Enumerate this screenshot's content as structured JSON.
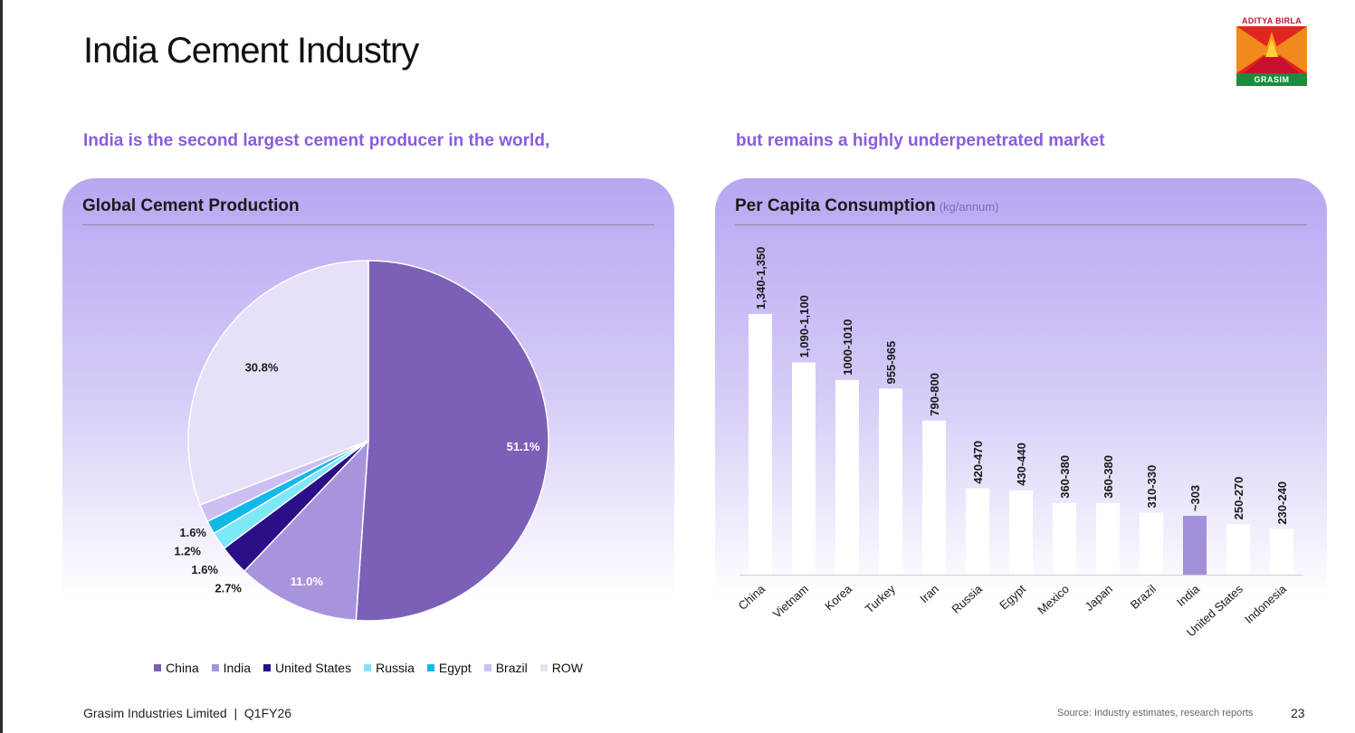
{
  "slide": {
    "title": "India Cement Industry",
    "subhead_left": "India is the second largest cement producer in the world,",
    "subhead_right": "but remains a highly underpenetrated market",
    "logo": {
      "top_text": "ADITYA BIRLA",
      "bottom_text": "GRASIM"
    },
    "footer": {
      "company": "Grasim Industries Limited  |  Q1FY26",
      "source": "Source: Industry estimates, research reports",
      "page": "23"
    },
    "colors": {
      "accent": "#8a5cdb",
      "panel": "#c7b8f5"
    }
  },
  "chart_data": [
    {
      "type": "pie",
      "title": "Global Cement Production",
      "labels": [
        "China",
        "India",
        "United States",
        "Russia",
        "Egypt",
        "Brazil",
        "ROW"
      ],
      "values": [
        51.1,
        11.0,
        2.7,
        1.6,
        1.2,
        1.6,
        30.8
      ],
      "value_labels": [
        "51.1%",
        "11.0%",
        "2.7%",
        "1.6%",
        "1.2%",
        "1.6%",
        "30.8%"
      ],
      "colors": [
        "#7c5fb6",
        "#a894dc",
        "#2a0f86",
        "#7de8f8",
        "#10b9e6",
        "#cdbff3",
        "#e6e0f8"
      ],
      "legend_position": "bottom"
    },
    {
      "type": "bar",
      "title": "Per Capita Consumption",
      "unit_label": "(kg/annum)",
      "categories": [
        "China",
        "Vietnam",
        "Korea",
        "Turkey",
        "Iran",
        "Russia",
        "Egypt",
        "Mexico",
        "Japan",
        "Brazil",
        "India",
        "United States",
        "Indonesia"
      ],
      "values": [
        1345,
        1095,
        1005,
        960,
        795,
        445,
        435,
        370,
        370,
        320,
        303,
        260,
        235
      ],
      "value_labels": [
        "1,340-1,350",
        "1,090-1,100",
        "1000-1010",
        "955-965",
        "790-800",
        "420-470",
        "430-440",
        "360-380",
        "360-380",
        "310-330",
        "~303",
        "250-270",
        "230-240"
      ],
      "ylim": [
        0,
        1345
      ],
      "bar_color": "#ffffff",
      "highlight_category": "India",
      "highlight_color": "#a18fd8"
    }
  ]
}
